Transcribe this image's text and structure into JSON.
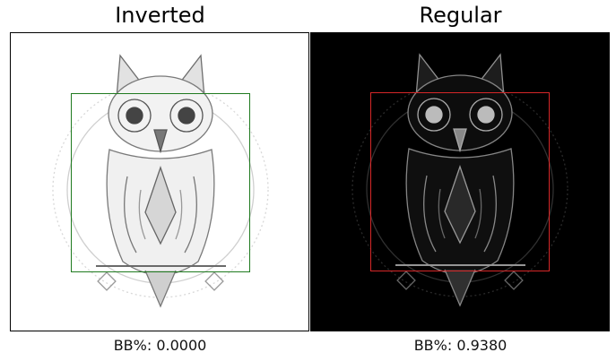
{
  "chart_data": [
    {
      "type": "image",
      "title": "Inverted",
      "caption": "BB%: 0.0000",
      "background": "#ffffff",
      "box_color": "#1f7a1f"
    },
    {
      "type": "image",
      "title": "Regular",
      "caption": "BB%: 0.9380",
      "background": "#000000",
      "box_color": "#d62728"
    }
  ]
}
